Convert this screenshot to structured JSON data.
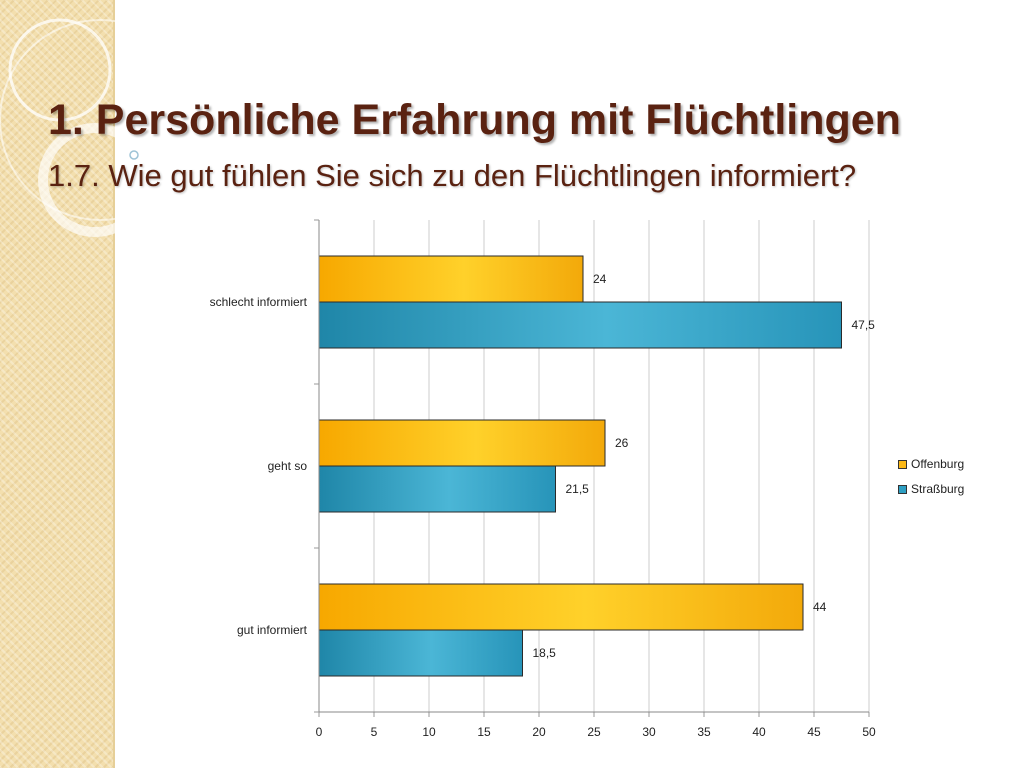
{
  "slide": {
    "title": "1. Persönliche Erfahrung mit Flüchtlingen",
    "subtitle": "1.7. Wie gut fühlen Sie sich zu den Flüchtlingen informiert?"
  },
  "colors": {
    "title": "#5a2211",
    "side_band": "#f3dfae",
    "offenburg": "#fbb816",
    "strassburg": "#2e9fc3",
    "gridline": "#cccccc"
  },
  "chart_data": {
    "type": "bar",
    "orientation": "horizontal",
    "categories": [
      "schlecht informiert",
      "geht so",
      "gut informiert"
    ],
    "series": [
      {
        "name": "Offenburg",
        "values": [
          24,
          26,
          44
        ],
        "labels": [
          "24",
          "26",
          "44"
        ]
      },
      {
        "name": "Straßburg",
        "values": [
          47.5,
          21.5,
          18.5
        ],
        "labels": [
          "47,5",
          "21,5",
          "18,5"
        ]
      }
    ],
    "xlim": [
      0,
      50
    ],
    "xticks": [
      0,
      5,
      10,
      15,
      20,
      25,
      30,
      35,
      40,
      45,
      50
    ],
    "xlabel": "",
    "ylabel": "",
    "grid": true,
    "legend_position": "right"
  }
}
